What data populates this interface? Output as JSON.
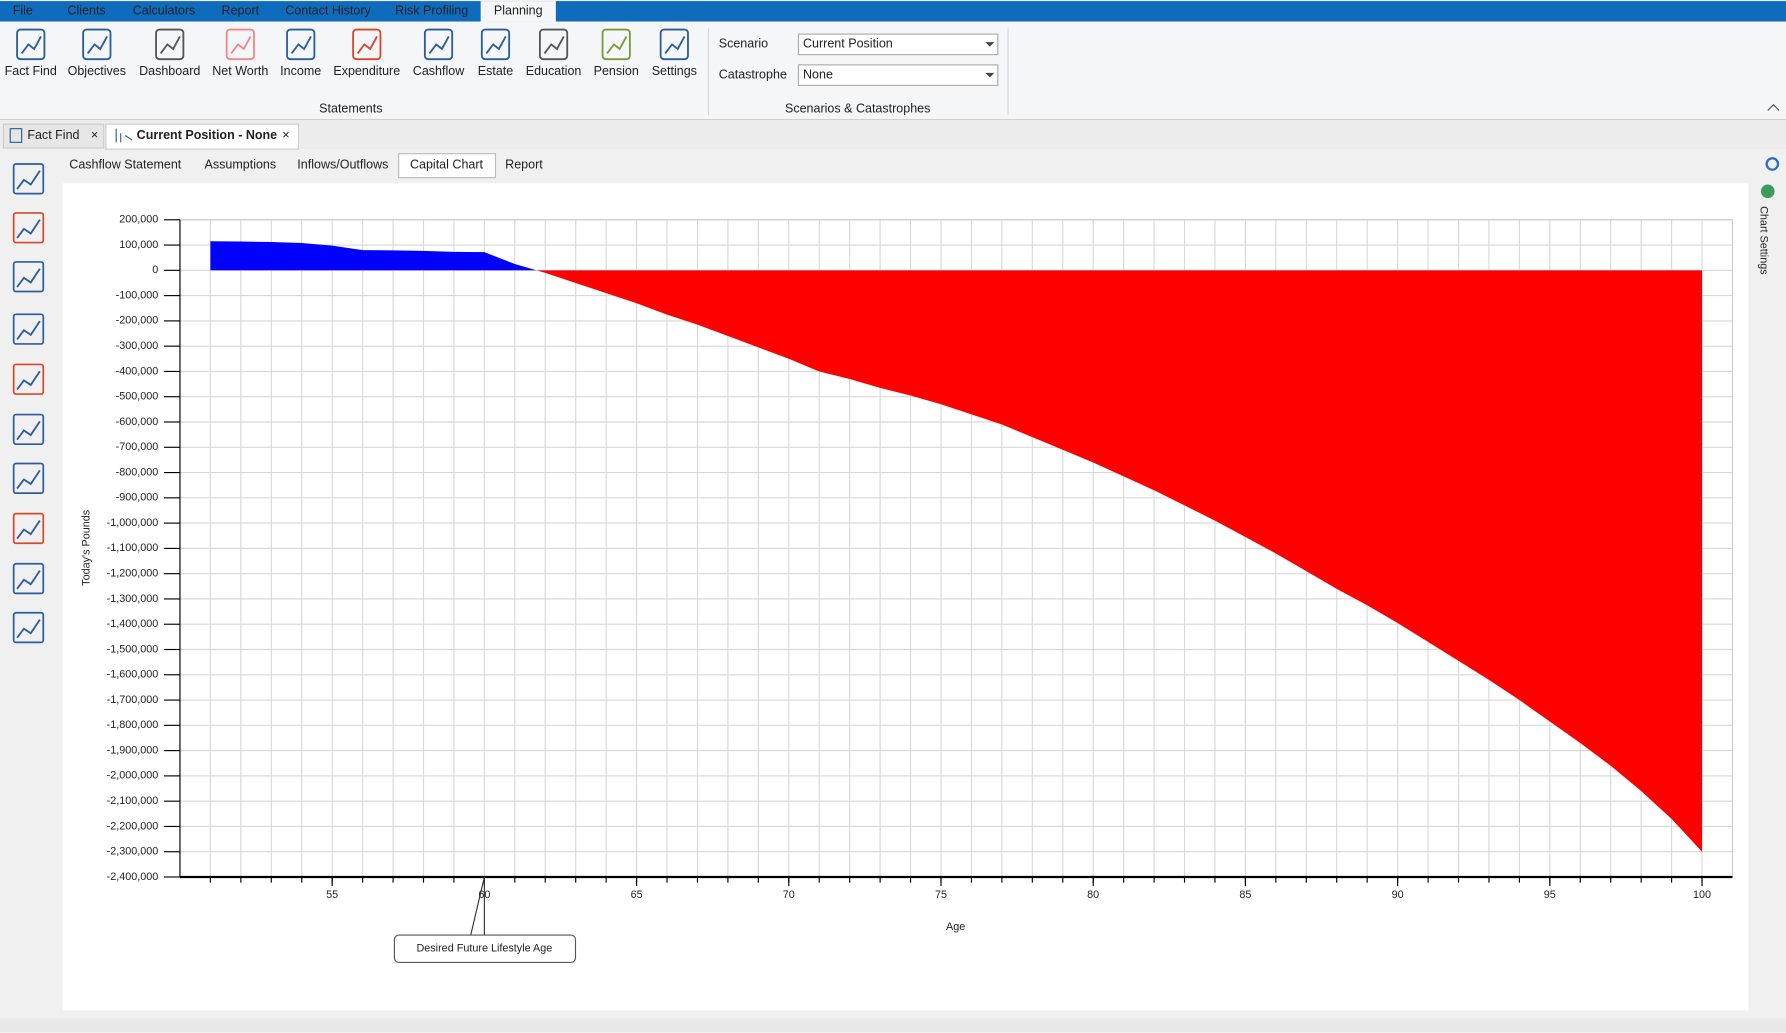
{
  "menu": [
    "File",
    "Clients",
    "Calculators",
    "Report",
    "Contact History",
    "Risk Profiling",
    "Planning"
  ],
  "ribbon": {
    "buttons": [
      "Fact Find",
      "Objectives",
      "Dashboard",
      "Net Worth",
      "Income",
      "Expenditure",
      "Cashflow",
      "Estate",
      "Education",
      "Pension",
      "Settings"
    ],
    "group1": "Statements",
    "scenario_label": "Scenario",
    "scenario_value": "Current Position",
    "catastrophe_label": "Catastrophe",
    "catastrophe_value": "None",
    "group2": "Scenarios & Catastrophes"
  },
  "doc_tabs": [
    "Fact Find",
    "Current Position - None"
  ],
  "sub_tabs": [
    "Cashflow Statement",
    "Assumptions",
    "Inflows/Outflows",
    "Capital Chart",
    "Report"
  ],
  "side_panel": "Chart Settings",
  "chart_data": {
    "type": "area",
    "x_label": "Age",
    "y_label": "Today's Pounds",
    "x": [
      51,
      52,
      53,
      54,
      55,
      56,
      57,
      58,
      59,
      60,
      61,
      62,
      63,
      64,
      65,
      66,
      67,
      68,
      69,
      70,
      71,
      72,
      73,
      74,
      75,
      76,
      77,
      78,
      79,
      80,
      81,
      82,
      83,
      84,
      85,
      86,
      87,
      88,
      89,
      90,
      91,
      92,
      93,
      94,
      95,
      96,
      97,
      98,
      99,
      100
    ],
    "values": [
      115000,
      114000,
      112000,
      108000,
      98000,
      80000,
      79000,
      77000,
      73000,
      72000,
      25000,
      -10000,
      -50000,
      -90000,
      -130000,
      -175000,
      -215000,
      -260000,
      -305000,
      -350000,
      -400000,
      -430000,
      -465000,
      -495000,
      -530000,
      -570000,
      -610000,
      -660000,
      -710000,
      -760000,
      -815000,
      -870000,
      -930000,
      -990000,
      -1055000,
      -1120000,
      -1190000,
      -1260000,
      -1325000,
      -1395000,
      -1470000,
      -1545000,
      -1620000,
      -1700000,
      -1785000,
      -1870000,
      -1960000,
      -2060000,
      -2170000,
      -2300000
    ],
    "positive_color": "#0000ff",
    "negative_color": "#ff0000",
    "xlim": [
      50,
      101
    ],
    "xticks": [
      55,
      60,
      65,
      70,
      75,
      80,
      85,
      90,
      95,
      100
    ],
    "ylim": [
      -2400000,
      200000
    ],
    "yticks": [
      {
        "value": 200000,
        "label": "200,000"
      },
      {
        "value": 100000,
        "label": "100,000"
      },
      0,
      {
        "value": -100000,
        "label": "-100,000"
      },
      {
        "value": -200000,
        "label": "-200,000"
      },
      {
        "value": -300000,
        "label": "-300,000"
      },
      {
        "value": -400000,
        "label": "-400,000"
      },
      {
        "value": -500000,
        "label": "-500,000"
      },
      {
        "value": -600000,
        "label": "-600,000"
      },
      {
        "value": -700000,
        "label": "-700,000"
      },
      {
        "value": -800000,
        "label": "-800,000"
      },
      {
        "value": -900000,
        "label": "-900,000"
      },
      {
        "value": -1000000,
        "label": "-1,000,000"
      },
      {
        "value": -1100000,
        "label": "-1,100,000"
      },
      {
        "value": -1200000,
        "label": "-1,200,000"
      },
      {
        "value": -1300000,
        "label": "-1,300,000"
      },
      {
        "value": -1400000,
        "label": "-1,400,000"
      },
      {
        "value": -1500000,
        "label": "-1,500,000"
      },
      {
        "value": -1600000,
        "label": "-1,600,000"
      },
      {
        "value": -1700000,
        "label": "-1,700,000"
      },
      {
        "value": -1800000,
        "label": "-1,800,000"
      },
      {
        "value": -1900000,
        "label": "-1,900,000"
      },
      {
        "value": -2000000,
        "label": "-2,000,000"
      },
      {
        "value": -2100000,
        "label": "-2,100,000"
      },
      {
        "value": -2200000,
        "label": "-2,200,000"
      },
      {
        "value": -2300000,
        "label": "-2,300,000"
      },
      {
        "value": -2400000,
        "label": "-2,400,000"
      }
    ],
    "grid": true,
    "annotation": {
      "text": "Desired Future Lifestyle Age",
      "x": 60
    }
  }
}
